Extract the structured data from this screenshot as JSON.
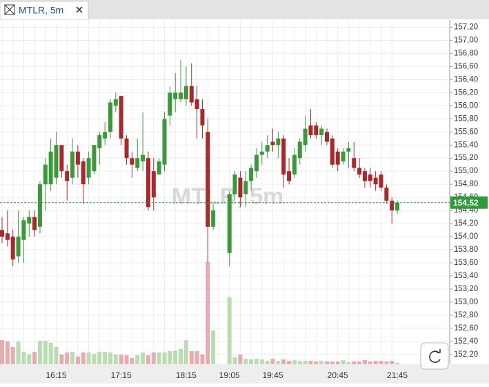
{
  "chart_data": {
    "type": "candlestick",
    "title": "MTLR, 5m",
    "categories": [
      null,
      null,
      null,
      null,
      null,
      null,
      null,
      null,
      null,
      null,
      "16:15",
      null,
      null,
      null,
      null,
      null,
      null,
      null,
      null,
      null,
      null,
      null,
      "17:15",
      null,
      null,
      null,
      null,
      null,
      null,
      null,
      null,
      null,
      null,
      null,
      "18:15",
      null,
      null,
      null,
      null,
      null,
      null,
      null,
      "19:05",
      null,
      null,
      null,
      null,
      null,
      null,
      null,
      "19:45",
      null,
      null,
      null,
      null,
      null,
      null,
      null,
      null,
      null,
      null,
      null,
      "20:45",
      null,
      null,
      null,
      null,
      null,
      null,
      null,
      null,
      null,
      null,
      "21:45"
    ],
    "open": [
      154.1,
      154.05,
      154.0,
      153.7,
      153.95,
      154.2,
      154.3,
      154.15,
      154.8,
      154.8,
      154.9,
      155.4,
      155.0,
      154.9,
      155.3,
      155.15,
      154.9,
      155.0,
      155.35,
      155.5,
      155.6,
      156.0,
      156.15,
      155.5,
      155.2,
      155.05,
      155.15,
      155.2,
      155.0,
      154.95,
      155.1,
      155.85,
      156.1,
      156.1,
      156.1,
      156.3,
      156.1,
      155.95,
      155.6,
      154.15,
      null,
      null,
      153.75,
      154.65,
      154.9,
      154.65,
      154.85,
      155.0,
      155.25,
      155.3,
      155.45,
      155.4,
      155.5,
      155.0,
      154.95,
      155.2,
      155.4,
      155.7,
      155.7,
      155.55,
      155.6,
      155.5,
      155.3,
      155.15,
      155.3,
      155.2,
      155.05,
      155.0,
      154.95,
      154.9,
      154.95,
      154.75,
      154.55,
      154.4
    ],
    "high": [
      154.3,
      154.4,
      154.1,
      154.4,
      154.3,
      154.4,
      154.4,
      154.85,
      155.2,
      155.5,
      155.6,
      155.4,
      155.1,
      155.5,
      155.4,
      155.2,
      155.3,
      155.4,
      155.6,
      155.75,
      156.1,
      156.2,
      156.15,
      155.55,
      155.3,
      155.5,
      155.9,
      155.3,
      155.2,
      155.2,
      155.9,
      156.3,
      156.5,
      156.7,
      156.6,
      156.65,
      156.3,
      156.1,
      155.8,
      154.5,
      null,
      null,
      154.7,
      155.0,
      155.0,
      155.0,
      155.1,
      155.35,
      155.45,
      155.55,
      155.65,
      155.6,
      155.55,
      155.2,
      155.35,
      155.5,
      155.85,
      155.95,
      155.75,
      155.7,
      155.65,
      155.55,
      155.35,
      155.35,
      155.45,
      155.45,
      155.2,
      155.05,
      155.05,
      155.0,
      155.0,
      154.8,
      154.6,
      154.55
    ],
    "low": [
      153.9,
      153.85,
      153.55,
      153.6,
      153.6,
      154.0,
      154.0,
      154.05,
      154.4,
      154.7,
      154.8,
      154.9,
      154.55,
      154.8,
      154.9,
      154.5,
      154.8,
      154.95,
      155.1,
      155.4,
      155.5,
      155.9,
      155.4,
      155.1,
      154.9,
      155.0,
      155.0,
      154.4,
      154.4,
      154.95,
      155.0,
      155.7,
      155.9,
      156.05,
      156.0,
      156.0,
      155.5,
      155.5,
      153.6,
      154.1,
      null,
      null,
      153.55,
      154.55,
      154.45,
      154.45,
      154.7,
      154.9,
      155.1,
      155.2,
      155.3,
      155.2,
      154.75,
      154.8,
      154.9,
      155.1,
      155.3,
      155.5,
      155.5,
      155.4,
      155.4,
      155.05,
      155.0,
      155.1,
      155.05,
      155.0,
      154.9,
      154.75,
      154.75,
      154.7,
      154.7,
      154.5,
      154.2,
      154.35
    ],
    "close": [
      154.0,
      153.95,
      153.65,
      154.0,
      154.25,
      154.3,
      154.1,
      154.8,
      155.1,
      155.3,
      155.4,
      155.0,
      154.85,
      155.3,
      155.1,
      154.8,
      155.2,
      155.4,
      155.55,
      155.6,
      156.05,
      156.1,
      155.5,
      155.2,
      155.1,
      155.2,
      155.25,
      154.45,
      154.6,
      155.15,
      155.8,
      156.2,
      156.2,
      156.2,
      156.3,
      156.05,
      155.95,
      155.7,
      154.15,
      154.4,
      null,
      null,
      154.65,
      154.95,
      154.6,
      154.85,
      155.05,
      155.25,
      155.3,
      155.4,
      155.4,
      155.5,
      154.95,
      154.85,
      155.25,
      155.45,
      155.65,
      155.55,
      155.55,
      155.65,
      155.45,
      155.1,
      155.1,
      155.3,
      155.35,
      155.05,
      154.95,
      154.85,
      154.85,
      154.8,
      154.75,
      154.55,
      154.4,
      154.52
    ],
    "volume": [
      35,
      33,
      25,
      33,
      18,
      14,
      18,
      34,
      34,
      31,
      25,
      14,
      17,
      18,
      11,
      17,
      17,
      15,
      18,
      18,
      17,
      14,
      14,
      13,
      9,
      13,
      17,
      13,
      17,
      17,
      17,
      19,
      20,
      22,
      35,
      19,
      19,
      14,
      148,
      49,
      null,
      null,
      97,
      10,
      14,
      8,
      7,
      8,
      7,
      5,
      8,
      5,
      7,
      5,
      6,
      5,
      5,
      5,
      4,
      5,
      4,
      4,
      4,
      6,
      3,
      4,
      4,
      6,
      4,
      5,
      5,
      4,
      5,
      2
    ],
    "volume_lim": [
      0,
      160
    ],
    "up_color": "#3a9a3a",
    "down_color": "#a8282e",
    "up_volume_color": "#b9dcb0",
    "down_volume_color": "#e8acb0",
    "ylim": [
      152.05,
      157.3
    ],
    "yticks": [
      {
        "value": 152.2,
        "label": "152,20"
      },
      {
        "value": 152.4,
        "label": "152,40"
      },
      {
        "value": 152.6,
        "label": "152,60"
      },
      {
        "value": 152.8,
        "label": "152,80"
      },
      {
        "value": 153.0,
        "label": "153,00"
      },
      {
        "value": 153.2,
        "label": "153,20"
      },
      {
        "value": 153.4,
        "label": "153,40"
      },
      {
        "value": 153.6,
        "label": "153,60"
      },
      {
        "value": 153.8,
        "label": "153,80"
      },
      {
        "value": 154.0,
        "label": "154,00"
      },
      {
        "value": 154.2,
        "label": "154,20"
      },
      {
        "value": 154.4,
        "label": "154,40"
      },
      {
        "value": 154.6,
        "label": "154,60"
      },
      {
        "value": 154.8,
        "label": "154,80"
      },
      {
        "value": 155.0,
        "label": "155,00"
      },
      {
        "value": 155.2,
        "label": "155,20"
      },
      {
        "value": 155.4,
        "label": "155,40"
      },
      {
        "value": 155.6,
        "label": "155,60"
      },
      {
        "value": 155.8,
        "label": "155,80"
      },
      {
        "value": 156.0,
        "label": "156,00"
      },
      {
        "value": 156.2,
        "label": "156,20"
      },
      {
        "value": 156.4,
        "label": "156,40"
      },
      {
        "value": 156.6,
        "label": "156,60"
      },
      {
        "value": 156.8,
        "label": "156,80"
      },
      {
        "value": 157.0,
        "label": "157,00"
      },
      {
        "value": 157.2,
        "label": "157,20"
      }
    ],
    "last_price": {
      "value": 154.52,
      "label": "154,52"
    },
    "last_price_color": "#2e9b3a",
    "grid": true
  }
}
